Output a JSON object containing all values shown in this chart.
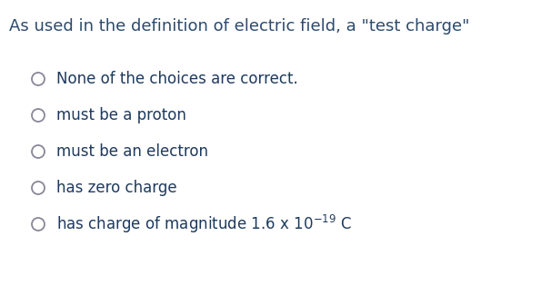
{
  "title": "As used in the definition of electric field, a \"test charge\"",
  "title_color": "#2c4a6e",
  "title_fontsize": 13.0,
  "bg_color": "#ffffff",
  "options": [
    "None of the choices are correct.",
    "must be a proton",
    "must be an electron",
    "has zero charge",
    "has charge of magnitude 1.6 x 10$^{-19}$ C"
  ],
  "options_color": "#1e3a5f",
  "options_fontsize": 12.0,
  "circle_color": "#888899",
  "circle_lw": 1.3
}
